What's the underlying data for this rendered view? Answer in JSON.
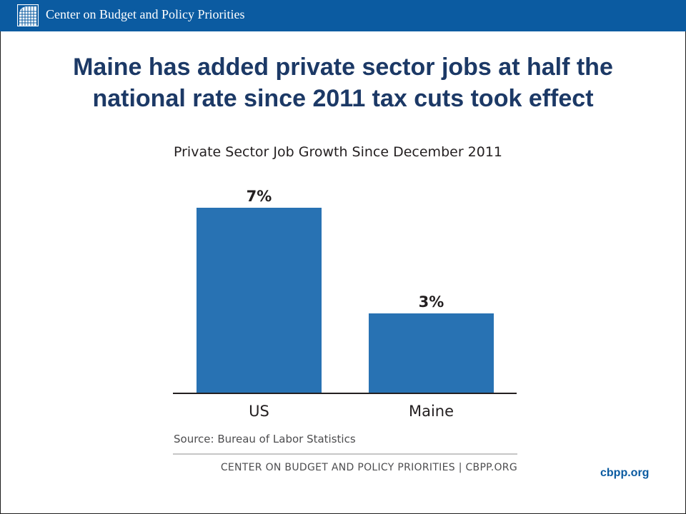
{
  "header": {
    "org_name": "Center on Budget and Policy Priorities",
    "logo_icon": "cbpp-building-logo-icon"
  },
  "slide": {
    "title_line1": "Maine has added private sector jobs at half the",
    "title_line2": "national rate since 2011 tax cuts took effect",
    "site_link": "cbpp.org"
  },
  "colors": {
    "header_bg": "#0b5ba1",
    "title": "#1c3966",
    "bar": "#2872b3"
  },
  "chart_data": {
    "type": "bar",
    "title": "Private Sector Job Growth Since December 2011",
    "categories": [
      "US",
      "Maine"
    ],
    "values": [
      7,
      3
    ],
    "value_labels": [
      "7%",
      "3%"
    ],
    "xlabel": "",
    "ylabel": "",
    "grid": false,
    "legend": "none",
    "source": "Source: Bureau of Labor Statistics",
    "footer": "CENTER ON BUDGET AND POLICY PRIORITIES | CBPP.ORG"
  }
}
